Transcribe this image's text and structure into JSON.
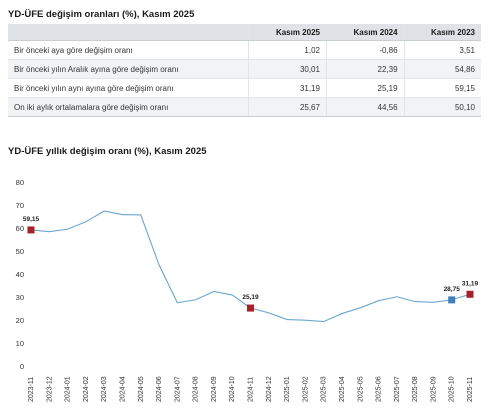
{
  "table": {
    "title": "YD-ÜFE değişim oranları (%), Kasım 2025",
    "headers": [
      "",
      "Kasım 2025",
      "Kasım 2024",
      "Kasım 2023"
    ],
    "rows": [
      {
        "label": "Bir önceki aya göre değişim oranı",
        "values": [
          "1,02",
          "-0,86",
          "3,51"
        ]
      },
      {
        "label": "Bir önceki yılın Aralık ayına göre değişim oranı",
        "values": [
          "30,01",
          "22,39",
          "54,86"
        ]
      },
      {
        "label": "Bir önceki yılın aynı ayına göre değişim oranı",
        "values": [
          "31,19",
          "25,19",
          "59,15"
        ]
      },
      {
        "label": "On iki aylık ortalamalara göre değişim oranı",
        "values": [
          "25,67",
          "44,56",
          "50,10"
        ]
      }
    ]
  },
  "chart_data": {
    "type": "line",
    "title": "YD-ÜFE yıllık değişim oranı (%), Kasım 2025",
    "xlabel": "",
    "ylabel": "",
    "ylim": [
      0,
      80
    ],
    "yticks": [
      0,
      10,
      20,
      30,
      40,
      50,
      60,
      70,
      80
    ],
    "grid": false,
    "legend": "none",
    "line_color": "#6aa6cf",
    "x": [
      "2023-11",
      "2023-12",
      "2024-01",
      "2024-02",
      "2024-03",
      "2024-04",
      "2024-05",
      "2024-06",
      "2024-07",
      "2024-08",
      "2024-09",
      "2024-10",
      "2024-11",
      "2024-12",
      "2025-01",
      "2025-02",
      "2025-03",
      "2025-04",
      "2025-05",
      "2025-06",
      "2025-07",
      "2025-08",
      "2025-09",
      "2025-10",
      "2025-11"
    ],
    "series": [
      {
        "values": [
          59.15,
          58.4,
          59.5,
          62.7,
          67.4,
          65.8,
          65.7,
          44.0,
          27.5,
          28.8,
          32.4,
          30.9,
          25.19,
          23.1,
          20.2,
          19.9,
          19.3,
          22.8,
          25.3,
          28.4,
          30.1,
          28.0,
          27.7,
          28.75,
          31.19
        ]
      }
    ],
    "highlights": [
      {
        "x": "2023-11",
        "value": 59.15,
        "label": "59,15",
        "color": "#a52226"
      },
      {
        "x": "2024-11",
        "value": 25.19,
        "label": "25,19",
        "color": "#a52226"
      },
      {
        "x": "2025-10",
        "value": 28.75,
        "label": "28,75",
        "color": "#3f7fbf"
      },
      {
        "x": "2025-11",
        "value": 31.19,
        "label": "31,19",
        "color": "#a52226"
      }
    ]
  }
}
